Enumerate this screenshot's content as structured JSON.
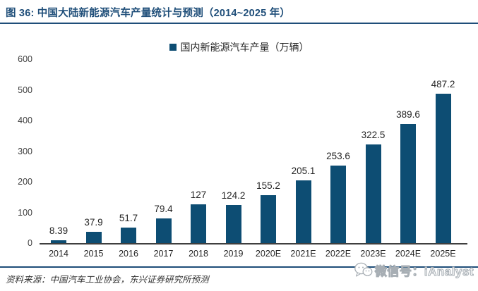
{
  "header": {
    "title": "图 36:  中国大陆新能源汽车产量统计与预测（2014~2025 年）"
  },
  "chart_data": {
    "type": "bar",
    "title": "国内新能源汽车产量（万辆）",
    "series_name": "国内新能源汽车产量（万辆）",
    "categories": [
      "2014",
      "2015",
      "2016",
      "2017",
      "2018",
      "2019",
      "2020E",
      "2021E",
      "2022E",
      "2023E",
      "2024E",
      "2025E"
    ],
    "values": [
      8.39,
      37.9,
      51.7,
      79.4,
      127,
      124.2,
      155.2,
      205.1,
      253.6,
      322.5,
      389.6,
      487.2
    ],
    "xlabel": "",
    "ylabel": "",
    "ylim": [
      0,
      600
    ],
    "y_ticks": [
      0,
      100,
      200,
      300,
      400,
      500,
      600
    ],
    "grid": false,
    "legend_position": "top",
    "bar_color": "#0d4d73"
  },
  "footer": {
    "source": "资料来源：中国汽车工业协会，东兴证券研究所预测",
    "watermark": "微信号：iAnalyst"
  },
  "colors": {
    "accent_blue": "#1f4e79",
    "bar_blue": "#0d4d73",
    "axis_gray": "#3f3f3f",
    "watermark_gray": "#a7aeb4"
  },
  "icons": {
    "wechat": "wechat-icon"
  }
}
